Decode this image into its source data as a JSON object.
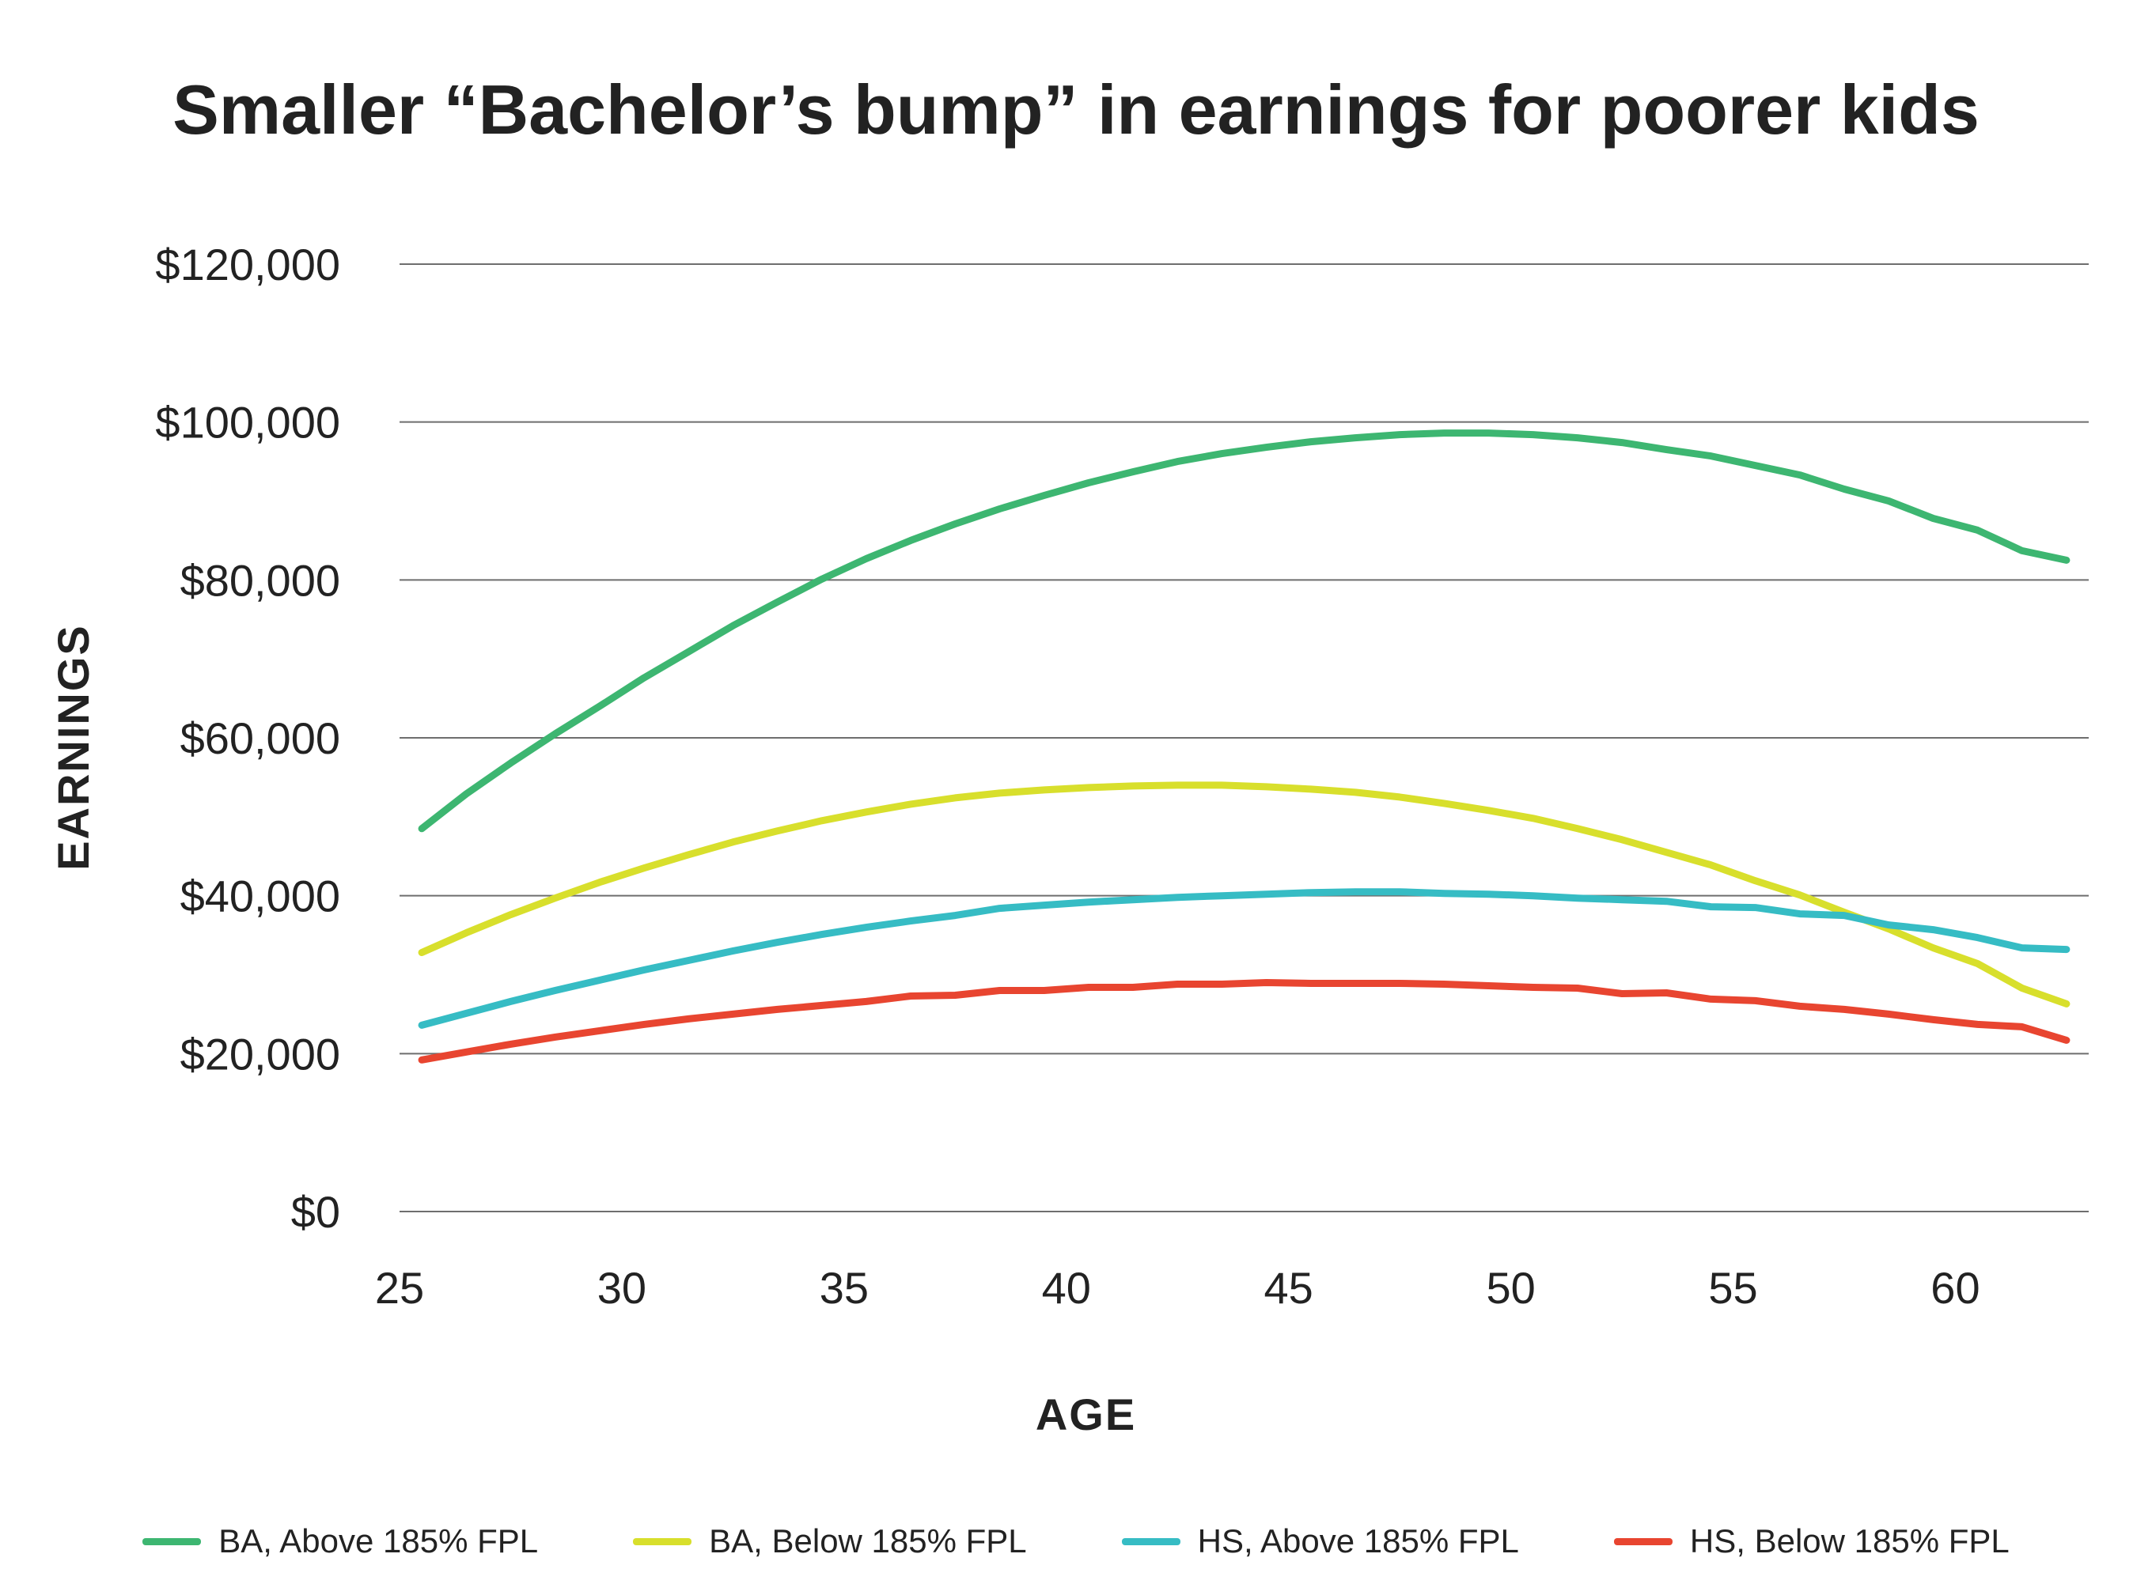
{
  "chart_data": {
    "type": "line",
    "title": "Smaller “Bachelor’s bump” in earnings for poorer kids",
    "xlabel": "AGE",
    "ylabel": "EARNINGS",
    "xlim": [
      25,
      63
    ],
    "ylim": [
      0,
      120000
    ],
    "x_ticks": [
      "25",
      "30",
      "35",
      "40",
      "45",
      "50",
      "55",
      "60"
    ],
    "x_tick_values": [
      25,
      30,
      35,
      40,
      45,
      50,
      55,
      60
    ],
    "y_ticks": [
      "$0",
      "$20,000",
      "$40,000",
      "$60,000",
      "$80,000",
      "$100,000",
      "$120,000"
    ],
    "y_tick_values": [
      0,
      20000,
      40000,
      60000,
      80000,
      100000,
      120000
    ],
    "grid": "horizontal",
    "legend_position": "bottom",
    "x": [
      25.5,
      26.5,
      27.5,
      28.5,
      29.5,
      30.5,
      31.5,
      32.5,
      33.5,
      34.5,
      35.5,
      36.5,
      37.5,
      38.5,
      39.5,
      40.5,
      41.5,
      42.5,
      43.5,
      44.5,
      45.5,
      46.5,
      47.5,
      48.5,
      49.5,
      50.5,
      51.5,
      52.5,
      53.5,
      54.5,
      55.5,
      56.5,
      57.5,
      58.5,
      59.5,
      60.5,
      61.5,
      62.5
    ],
    "series": [
      {
        "name": "BA, Above 185% FPL",
        "color": "#3db671",
        "values": [
          48500,
          52900,
          56800,
          60500,
          64000,
          67600,
          70900,
          74200,
          77200,
          80100,
          82700,
          85000,
          87100,
          89000,
          90700,
          92300,
          93700,
          95000,
          96000,
          96800,
          97500,
          98000,
          98400,
          98600,
          98600,
          98400,
          98000,
          97400,
          96500,
          95700,
          94500,
          93300,
          91500,
          90000,
          87800,
          86300,
          83700,
          82500
        ]
      },
      {
        "name": "BA, Below 185% FPL",
        "color": "#d8df2c",
        "values": [
          32800,
          35300,
          37600,
          39700,
          41700,
          43500,
          45200,
          46800,
          48200,
          49500,
          50600,
          51600,
          52400,
          53000,
          53400,
          53700,
          53900,
          54000,
          54000,
          53800,
          53500,
          53100,
          52500,
          51700,
          50800,
          49800,
          48500,
          47100,
          45500,
          43900,
          41900,
          40100,
          37900,
          35800,
          33400,
          31400,
          28300,
          26300
        ]
      },
      {
        "name": "HS, Above 185% FPL",
        "color": "#36bcc4",
        "values": [
          23600,
          25100,
          26600,
          28000,
          29300,
          30600,
          31800,
          33000,
          34100,
          35100,
          36000,
          36800,
          37500,
          38400,
          38800,
          39200,
          39500,
          39800,
          40000,
          40200,
          40400,
          40500,
          40500,
          40300,
          40200,
          40000,
          39700,
          39500,
          39300,
          38600,
          38500,
          37700,
          37500,
          36300,
          35700,
          34700,
          33400,
          33200
        ]
      },
      {
        "name": "HS, Below 185% FPL",
        "color": "#e84530",
        "values": [
          19200,
          20200,
          21200,
          22100,
          22900,
          23700,
          24400,
          25000,
          25600,
          26100,
          26600,
          27300,
          27400,
          28000,
          28000,
          28400,
          28400,
          28800,
          28800,
          29000,
          28900,
          28900,
          28900,
          28800,
          28600,
          28400,
          28300,
          27600,
          27700,
          26900,
          26700,
          26000,
          25600,
          25000,
          24300,
          23700,
          23400,
          21700
        ]
      }
    ]
  }
}
